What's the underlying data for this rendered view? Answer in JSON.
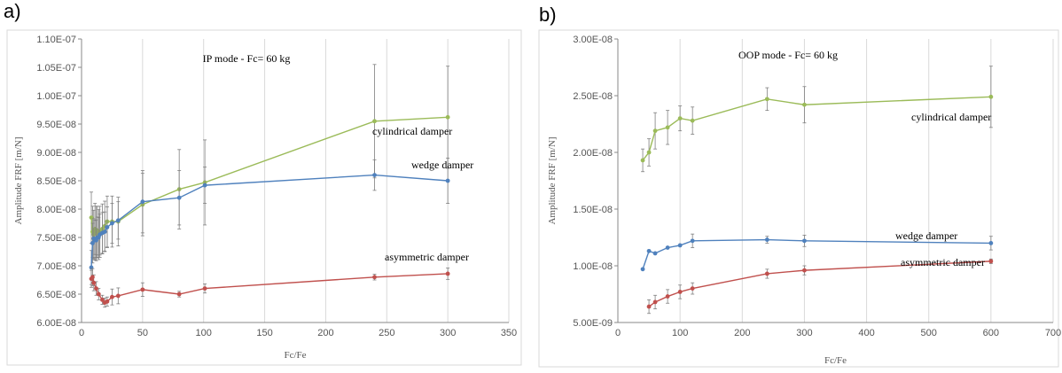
{
  "panel_labels": [
    "a)",
    "b)"
  ],
  "chart_data": [
    {
      "type": "line",
      "title": "IP mode - Fc= 60 kg",
      "xlabel": "Fc/Fe",
      "ylabel": "Amplitude FRF  [m/N]",
      "xlim": [
        0,
        350
      ],
      "ylim": [
        6e-08,
        1.1e-07
      ],
      "xticks": [
        0,
        50,
        100,
        150,
        200,
        250,
        300,
        350
      ],
      "yticks": [
        6e-08,
        6.5e-08,
        7e-08,
        7.5e-08,
        8e-08,
        8.5e-08,
        9e-08,
        9.5e-08,
        1e-07,
        1.05e-07,
        1.1e-07
      ],
      "xtick_labels": [
        "0",
        "50",
        "100",
        "150",
        "200",
        "250",
        "300",
        "350"
      ],
      "ytick_labels": [
        "6.00E-08",
        "6.50E-08",
        "7.00E-08",
        "7.50E-08",
        "8.00E-08",
        "8.50E-08",
        "9.00E-08",
        "9.50E-08",
        "1.00E-07",
        "1.05E-07",
        "1.10E-07"
      ],
      "grid": "vertical",
      "legend": "none",
      "series": [
        {
          "name": "cylindrical damper",
          "color": "#9bbb59",
          "x": [
            8,
            9,
            10,
            11,
            12,
            13,
            14,
            15,
            17,
            19,
            21,
            25,
            30,
            50,
            80,
            101,
            240,
            300
          ],
          "y": [
            7.85e-08,
            7.6e-08,
            7.55e-08,
            7.65e-08,
            7.6e-08,
            7.62e-08,
            7.55e-08,
            7.6e-08,
            7.65e-08,
            7.7e-08,
            7.78e-08,
            7.78e-08,
            7.78e-08,
            8.08e-08,
            8.35e-08,
            8.47e-08,
            9.55e-08,
            9.62e-08
          ],
          "err": [
            4.5e-09,
            4.5e-09,
            4.3e-09,
            4.5e-09,
            4.5e-09,
            4.3e-09,
            4.4e-09,
            4.5e-09,
            4.4e-09,
            4.4e-09,
            4.5e-09,
            4.5e-09,
            4.3e-09,
            5.5e-09,
            7e-09,
            7.5e-09,
            1e-08,
            9e-09
          ],
          "label_text": "cylindrical damper"
        },
        {
          "name": "wedge damper",
          "color": "#4f81bd",
          "x": [
            8,
            9,
            10,
            11,
            12,
            13,
            14,
            15,
            17,
            19,
            21,
            25,
            30,
            50,
            80,
            101,
            240,
            300
          ],
          "y": [
            6.97e-08,
            7.4e-08,
            7.48e-08,
            7.45e-08,
            7.45e-08,
            7.5e-08,
            7.5e-08,
            7.55e-08,
            7.58e-08,
            7.6e-08,
            7.68e-08,
            7.75e-08,
            7.8e-08,
            8.13e-08,
            8.2e-08,
            8.42e-08,
            8.6e-08,
            8.5e-08
          ],
          "err": [
            3e-09,
            3.5e-09,
            3.5e-09,
            3.5e-09,
            3.6e-09,
            3.6e-09,
            3.5e-09,
            3.6e-09,
            3.6e-09,
            3.5e-09,
            3.6e-09,
            3.5e-09,
            3.3e-09,
            5.5e-09,
            4.8e-09,
            3.2e-09,
            2.7e-09,
            4e-09
          ],
          "label_text": "wedge damper"
        },
        {
          "name": "asymmetric damper",
          "color": "#c0504d",
          "x": [
            8,
            9,
            10,
            12,
            14,
            17,
            19,
            21,
            25,
            30,
            50,
            80,
            101,
            240,
            300
          ],
          "y": [
            6.77e-08,
            6.8e-08,
            6.7e-08,
            6.6e-08,
            6.5e-08,
            6.4e-08,
            6.35e-08,
            6.37e-08,
            6.45e-08,
            6.47e-08,
            6.58e-08,
            6.5e-08,
            6.6e-08,
            6.8e-08,
            6.86e-08
          ],
          "err": [
            1.5e-09,
            1.5e-09,
            1.4e-09,
            1.2e-09,
            1e-09,
            8e-10,
            8e-10,
            8e-10,
            1.4e-09,
            1.4e-09,
            1.2e-09,
            5e-10,
            8e-10,
            5e-10,
            1e-09
          ],
          "label_text": "asymmetric damper"
        }
      ]
    },
    {
      "type": "line",
      "title": "OOP mode - Fc= 60 kg",
      "xlabel": "Fc/Fe",
      "ylabel": "Amplitude FRF  [m/N]",
      "xlim": [
        0,
        700
      ],
      "ylim": [
        5e-09,
        3e-08
      ],
      "xticks": [
        0,
        100,
        200,
        300,
        400,
        500,
        600,
        700
      ],
      "yticks": [
        5e-09,
        1e-08,
        1.5e-08,
        2e-08,
        2.5e-08,
        3e-08
      ],
      "xtick_labels": [
        "0",
        "100",
        "200",
        "300",
        "400",
        "500",
        "600",
        "700"
      ],
      "ytick_labels": [
        "5.00E-09",
        "1.00E-08",
        "1.50E-08",
        "2.00E-08",
        "2.50E-08",
        "3.00E-08"
      ],
      "grid": "vertical",
      "legend": "none",
      "series": [
        {
          "name": "cylindrical damper",
          "color": "#9bbb59",
          "x": [
            40,
            50,
            60,
            80,
            100,
            120,
            240,
            300,
            600
          ],
          "y": [
            1.93e-08,
            2e-08,
            2.19e-08,
            2.22e-08,
            2.3e-08,
            2.28e-08,
            2.47e-08,
            2.42e-08,
            2.49e-08
          ],
          "err": [
            1e-09,
            1.2e-09,
            1.6e-09,
            1.5e-09,
            1.1e-09,
            1.2e-09,
            1e-09,
            1.6e-09,
            2.7e-09
          ],
          "label_text": "cylindrical damper"
        },
        {
          "name": "wedge damper",
          "color": "#4f81bd",
          "x": [
            40,
            50,
            60,
            80,
            100,
            120,
            240,
            300,
            600
          ],
          "y": [
            9.7e-09,
            1.13e-08,
            1.11e-08,
            1.16e-08,
            1.18e-08,
            1.22e-08,
            1.23e-08,
            1.22e-08,
            1.2e-08
          ],
          "err": [
            0,
            0,
            0,
            0,
            0,
            6e-10,
            3e-10,
            5e-10,
            6e-10
          ],
          "label_text": "wedge damper"
        },
        {
          "name": "asymmetric damper",
          "color": "#c0504d",
          "x": [
            50,
            60,
            80,
            100,
            120,
            240,
            300,
            600
          ],
          "y": [
            6.4e-09,
            6.8e-09,
            7.3e-09,
            7.7e-09,
            8e-09,
            9.3e-09,
            9.6e-09,
            1.04e-08
          ],
          "err": [
            6e-10,
            6e-10,
            6e-10,
            6e-10,
            5e-10,
            4e-10,
            4e-10,
            2e-10
          ],
          "label_text": "asymmetric damper"
        }
      ]
    }
  ]
}
